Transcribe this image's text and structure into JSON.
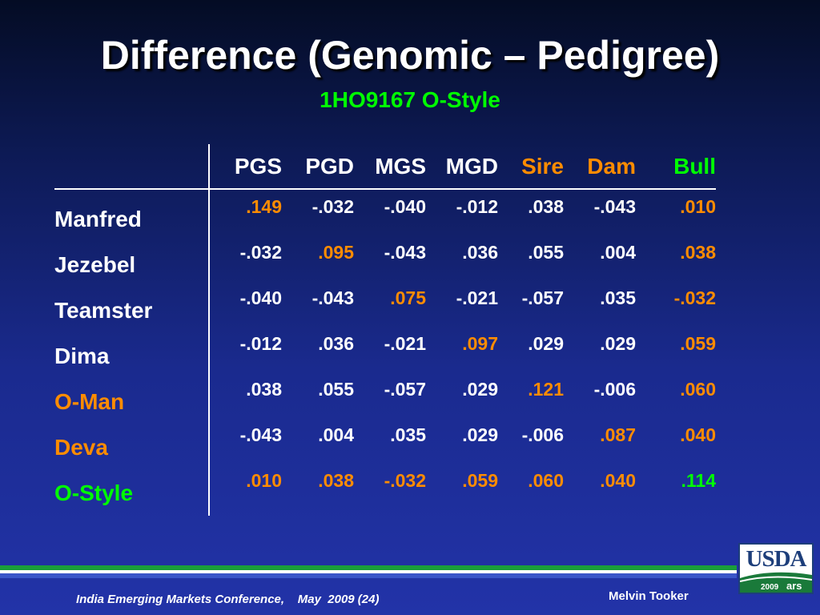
{
  "slide": {
    "title": "Difference (Genomic – Pedigree)",
    "subtitle": "1HO9167 O-Style"
  },
  "colors": {
    "white": "#ffffff",
    "green": "#00ff00",
    "orange": "#ff8c00"
  },
  "table": {
    "columns": [
      {
        "label": "PGS",
        "color": "#ffffff"
      },
      {
        "label": "PGD",
        "color": "#ffffff"
      },
      {
        "label": "MGS",
        "color": "#ffffff"
      },
      {
        "label": "MGD",
        "color": "#ffffff"
      },
      {
        "label": "Sire",
        "color": "#ff8c00"
      },
      {
        "label": "Dam",
        "color": "#ff8c00"
      },
      {
        "label": "Bull",
        "color": "#00ff00"
      }
    ],
    "rows": [
      {
        "label": "Manfred",
        "label_color": "#ffffff",
        "values": [
          ".149",
          "-.032",
          "-.040",
          "-.012",
          ".038",
          "-.043",
          ".010"
        ],
        "colors": [
          "#ff8c00",
          "#ffffff",
          "#ffffff",
          "#ffffff",
          "#ffffff",
          "#ffffff",
          "#ff8c00"
        ]
      },
      {
        "label": "Jezebel",
        "label_color": "#ffffff",
        "values": [
          "-.032",
          ".095",
          "-.043",
          ".036",
          ".055",
          ".004",
          ".038"
        ],
        "colors": [
          "#ffffff",
          "#ff8c00",
          "#ffffff",
          "#ffffff",
          "#ffffff",
          "#ffffff",
          "#ff8c00"
        ]
      },
      {
        "label": "Teamster",
        "label_color": "#ffffff",
        "values": [
          "-.040",
          "-.043",
          ".075",
          "-.021",
          "-.057",
          ".035",
          "-.032"
        ],
        "colors": [
          "#ffffff",
          "#ffffff",
          "#ff8c00",
          "#ffffff",
          "#ffffff",
          "#ffffff",
          "#ff8c00"
        ]
      },
      {
        "label": "Dima",
        "label_color": "#ffffff",
        "values": [
          "-.012",
          ".036",
          "-.021",
          ".097",
          ".029",
          ".029",
          ".059"
        ],
        "colors": [
          "#ffffff",
          "#ffffff",
          "#ffffff",
          "#ff8c00",
          "#ffffff",
          "#ffffff",
          "#ff8c00"
        ]
      },
      {
        "label": "O-Man",
        "label_color": "#ff8c00",
        "values": [
          ".038",
          ".055",
          "-.057",
          ".029",
          ".121",
          "-.006",
          ".060"
        ],
        "colors": [
          "#ffffff",
          "#ffffff",
          "#ffffff",
          "#ffffff",
          "#ff8c00",
          "#ffffff",
          "#ff8c00"
        ]
      },
      {
        "label": "Deva",
        "label_color": "#ff8c00",
        "values": [
          "-.043",
          ".004",
          ".035",
          ".029",
          "-.006",
          ".087",
          ".040"
        ],
        "colors": [
          "#ffffff",
          "#ffffff",
          "#ffffff",
          "#ffffff",
          "#ffffff",
          "#ff8c00",
          "#ff8c00"
        ]
      },
      {
        "label": "O-Style",
        "label_color": "#00ff00",
        "values": [
          ".010",
          ".038",
          "-.032",
          ".059",
          ".060",
          ".040",
          ".114"
        ],
        "colors": [
          "#ff8c00",
          "#ff8c00",
          "#ff8c00",
          "#ff8c00",
          "#ff8c00",
          "#ff8c00",
          "#00ff00"
        ]
      }
    ]
  },
  "footer": {
    "conference": "India Emerging Markets Conference,    May  2009 (24)",
    "author": "Melvin Tooker"
  },
  "logo": {
    "text": "USDA",
    "year": "2009",
    "ars": "ars",
    "icon": "usda-logo-icon"
  }
}
